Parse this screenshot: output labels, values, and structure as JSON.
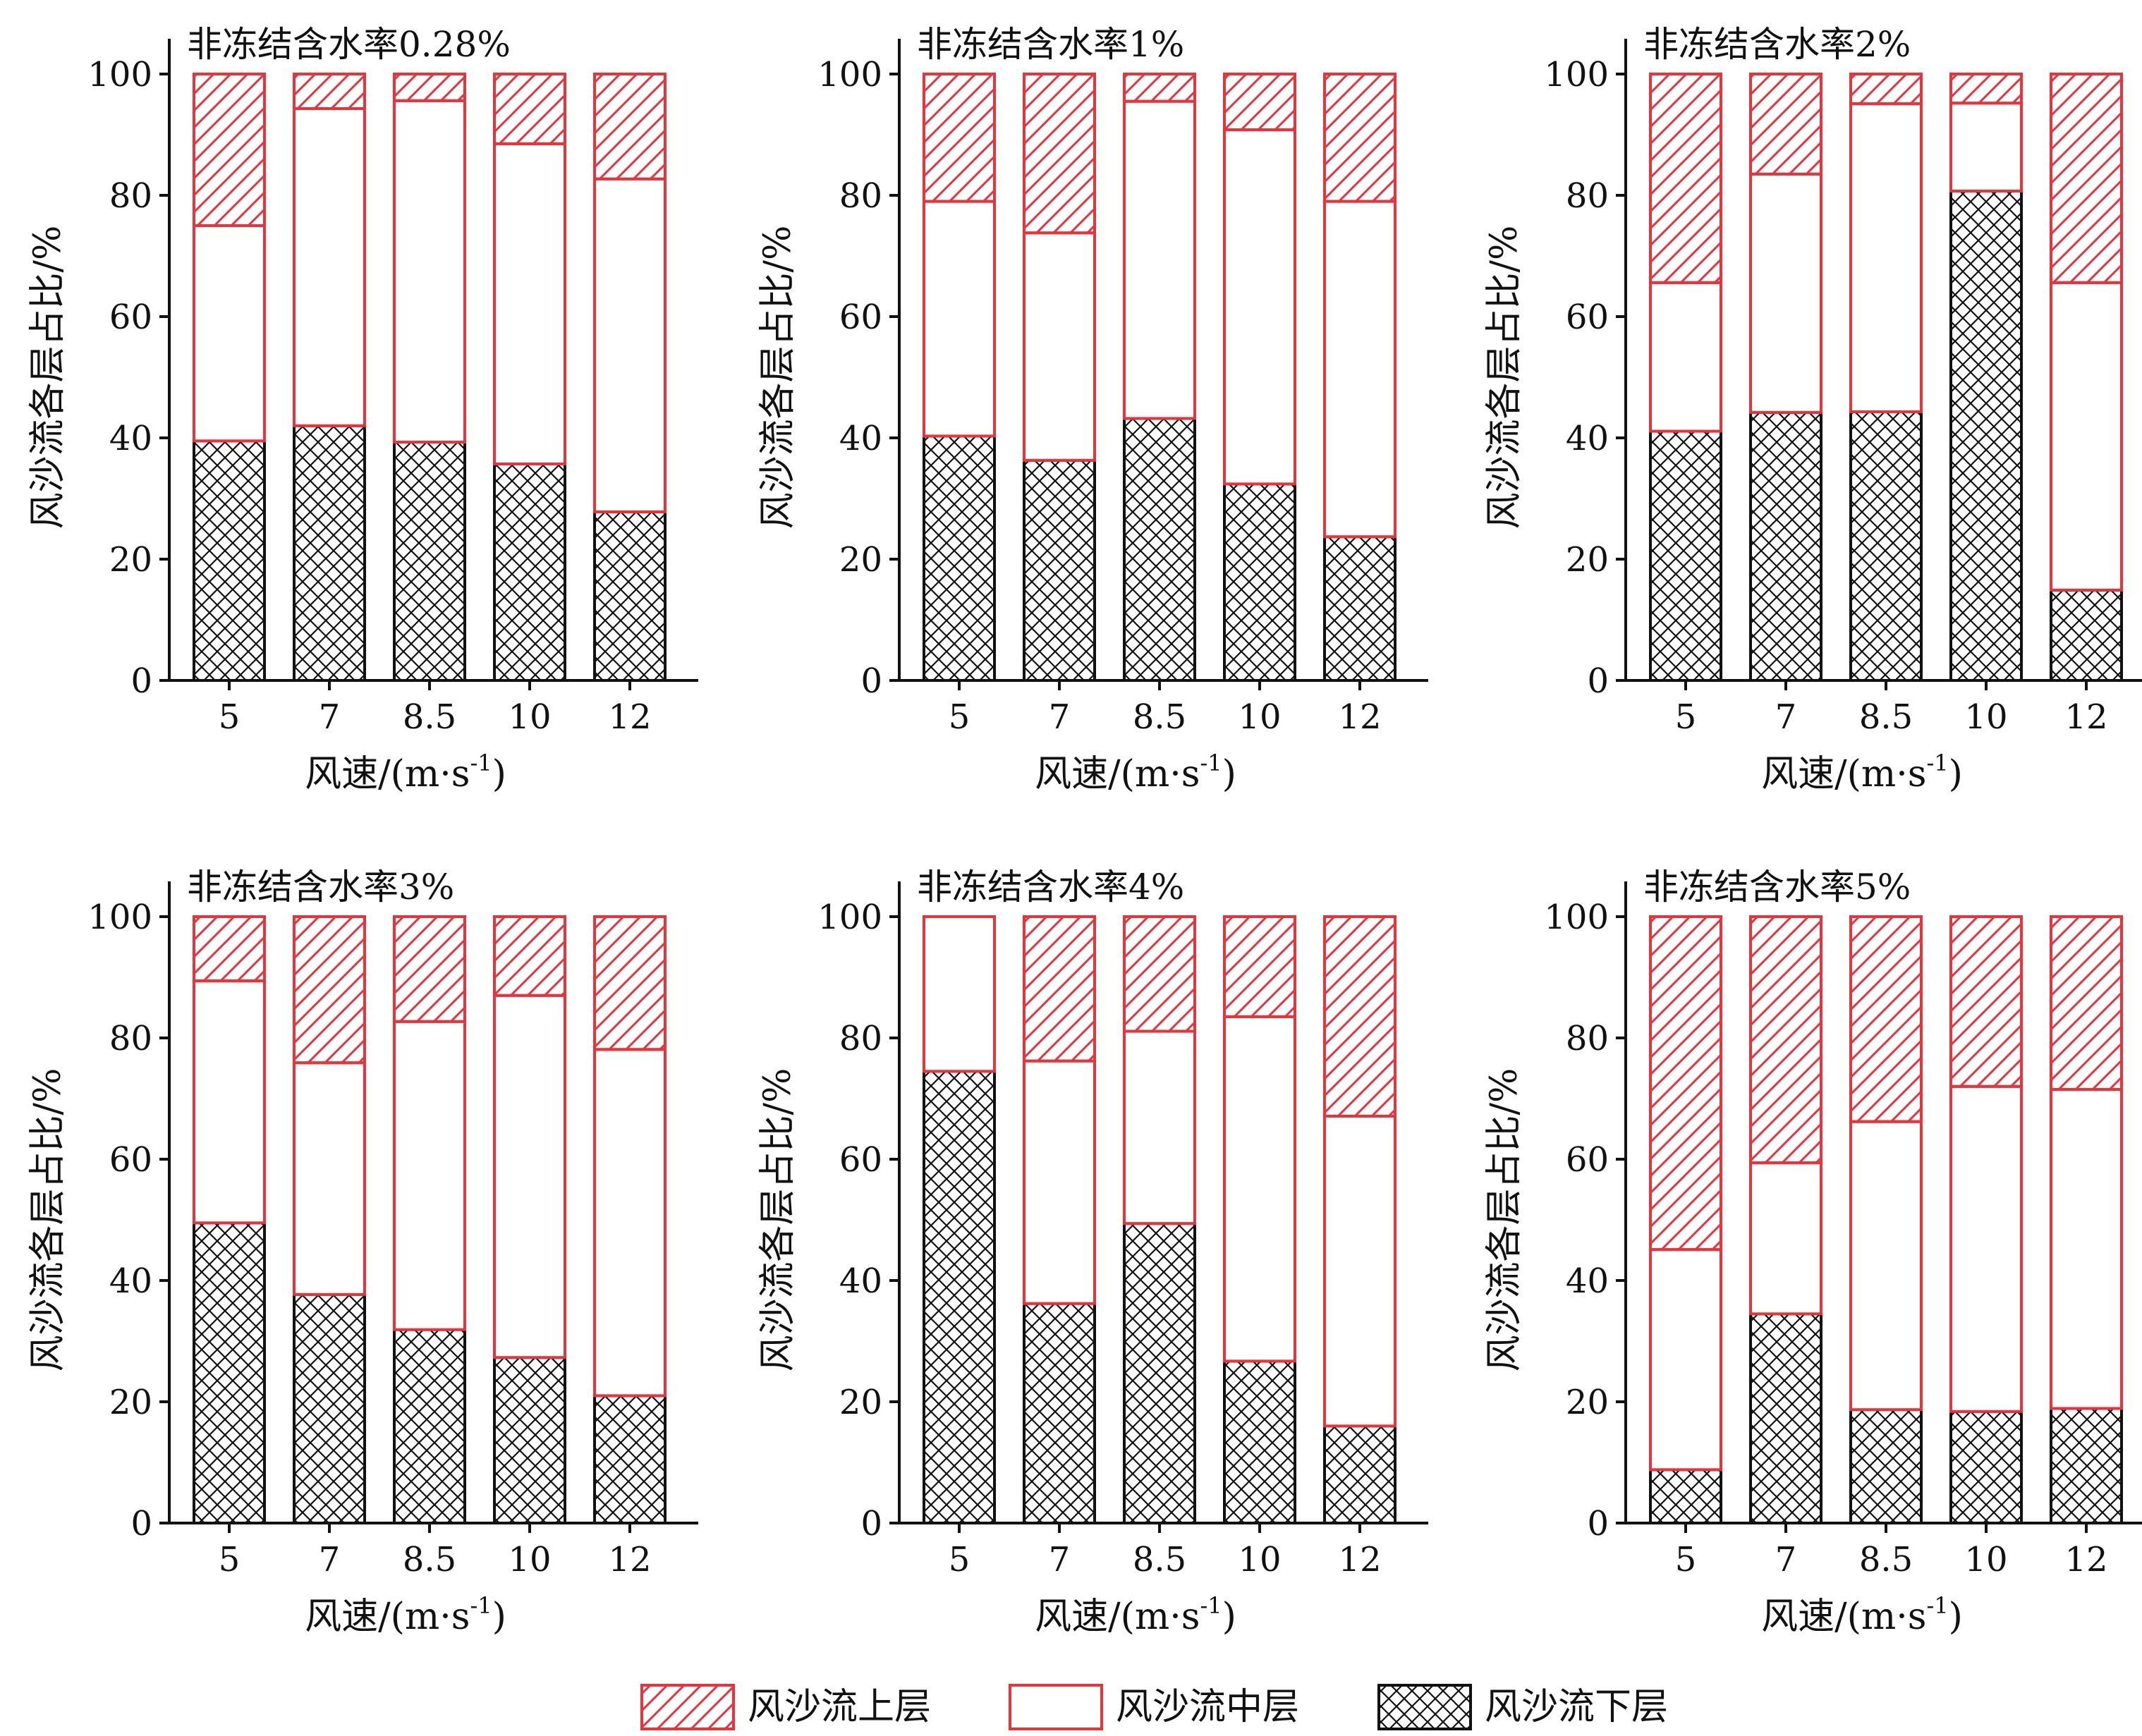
{
  "legend": [
    {
      "key": "upper",
      "label": "风沙流上层",
      "pattern": "diagonal-hatch"
    },
    {
      "key": "middle",
      "label": "风沙流中层",
      "pattern": "none"
    },
    {
      "key": "lower",
      "label": "风沙流下层",
      "pattern": "cross-hatch"
    }
  ],
  "colors": {
    "bar_edge": "#e8333a",
    "lower_edge": "#111111",
    "axis": "#111111",
    "background": "#ffffff"
  },
  "chart_data": [
    {
      "type": "bar",
      "stacked": true,
      "title": "非冻结含水率0.28%",
      "categories": [
        "5",
        "7",
        "8.5",
        "10",
        "12"
      ],
      "xlabel": "风速/(m·s-1)",
      "ylabel": "风沙流各层占比/%",
      "ylim": [
        0,
        100
      ],
      "yticks": [
        "0",
        "20",
        "40",
        "60",
        "80",
        "100"
      ],
      "series": [
        {
          "name": "风沙流下层",
          "values": [
            39.5,
            42,
            39.3,
            35.7,
            27.8
          ]
        },
        {
          "name": "风沙流中层",
          "values": [
            35.5,
            52.3,
            56.3,
            52.8,
            54.9
          ]
        },
        {
          "name": "风沙流上层",
          "values": [
            25,
            5.7,
            4.4,
            11.5,
            17.3
          ]
        }
      ]
    },
    {
      "type": "bar",
      "stacked": true,
      "title": "非冻结含水率1%",
      "categories": [
        "5",
        "7",
        "8.5",
        "10",
        "12"
      ],
      "xlabel": "风速/(m·s-1)",
      "ylabel": "风沙流各层占比/%",
      "ylim": [
        0,
        100
      ],
      "yticks": [
        "0",
        "20",
        "40",
        "60",
        "80",
        "100"
      ],
      "series": [
        {
          "name": "风沙流下层",
          "values": [
            40.3,
            36.3,
            43.2,
            32.4,
            23.7
          ]
        },
        {
          "name": "风沙流中层",
          "values": [
            38.7,
            37.5,
            52.3,
            58.4,
            55.3
          ]
        },
        {
          "name": "风沙流上层",
          "values": [
            21,
            26.2,
            4.5,
            9.2,
            21
          ]
        }
      ]
    },
    {
      "type": "bar",
      "stacked": true,
      "title": "非冻结含水率2%",
      "categories": [
        "5",
        "7",
        "8.5",
        "10",
        "12"
      ],
      "xlabel": "风速/(m·s-1)",
      "ylabel": "风沙流各层占比/%",
      "ylim": [
        0,
        100
      ],
      "yticks": [
        "0",
        "20",
        "40",
        "60",
        "80",
        "100"
      ],
      "series": [
        {
          "name": "风沙流下层",
          "values": [
            41.1,
            44.2,
            44.3,
            80.7,
            14.9
          ]
        },
        {
          "name": "风沙流中层",
          "values": [
            24.5,
            39.3,
            50.8,
            14.5,
            50.7
          ]
        },
        {
          "name": "风沙流上层",
          "values": [
            34.4,
            16.5,
            4.9,
            4.8,
            34.4
          ]
        }
      ]
    },
    {
      "type": "bar",
      "stacked": true,
      "title": "非冻结含水率3%",
      "categories": [
        "5",
        "7",
        "8.5",
        "10",
        "12"
      ],
      "xlabel": "风速/(m·s-1)",
      "ylabel": "风沙流各层占比/%",
      "ylim": [
        0,
        100
      ],
      "yticks": [
        "0",
        "20",
        "40",
        "60",
        "80",
        "100"
      ],
      "series": [
        {
          "name": "风沙流下层",
          "values": [
            49.5,
            37.7,
            31.9,
            27.3,
            21
          ]
        },
        {
          "name": "风沙流中层",
          "values": [
            39.9,
            38.2,
            50.8,
            59.7,
            57.1
          ]
        },
        {
          "name": "风沙流上层",
          "values": [
            10.6,
            24.1,
            17.3,
            13,
            21.9
          ]
        }
      ]
    },
    {
      "type": "bar",
      "stacked": true,
      "title": "非冻结含水率4%",
      "categories": [
        "5",
        "7",
        "8.5",
        "10",
        "12"
      ],
      "xlabel": "风速/(m·s-1)",
      "ylabel": "风沙流各层占比/%",
      "ylim": [
        0,
        100
      ],
      "yticks": [
        "0",
        "20",
        "40",
        "60",
        "80",
        "100"
      ],
      "series": [
        {
          "name": "风沙流下层",
          "values": [
            74.5,
            36.2,
            49.4,
            26.7,
            16
          ]
        },
        {
          "name": "风沙流中层",
          "values": [
            25.5,
            40,
            31.7,
            56.8,
            51.1
          ]
        },
        {
          "name": "风沙流上层",
          "values": [
            0,
            23.8,
            18.9,
            16.5,
            32.9
          ]
        }
      ]
    },
    {
      "type": "bar",
      "stacked": true,
      "title": "非冻结含水率5%",
      "categories": [
        "5",
        "7",
        "8.5",
        "10",
        "12"
      ],
      "xlabel": "风速/(m·s-1)",
      "ylabel": "风沙流各层占比/%",
      "ylim": [
        0,
        100
      ],
      "yticks": [
        "0",
        "20",
        "40",
        "60",
        "80",
        "100"
      ],
      "series": [
        {
          "name": "风沙流下层",
          "values": [
            8.8,
            34.5,
            18.7,
            18.4,
            18.9
          ]
        },
        {
          "name": "风沙流中层",
          "values": [
            36.3,
            24.9,
            47.5,
            53.6,
            52.6
          ]
        },
        {
          "name": "风沙流上层",
          "values": [
            54.9,
            40.6,
            33.8,
            28,
            28.5
          ]
        }
      ]
    }
  ]
}
